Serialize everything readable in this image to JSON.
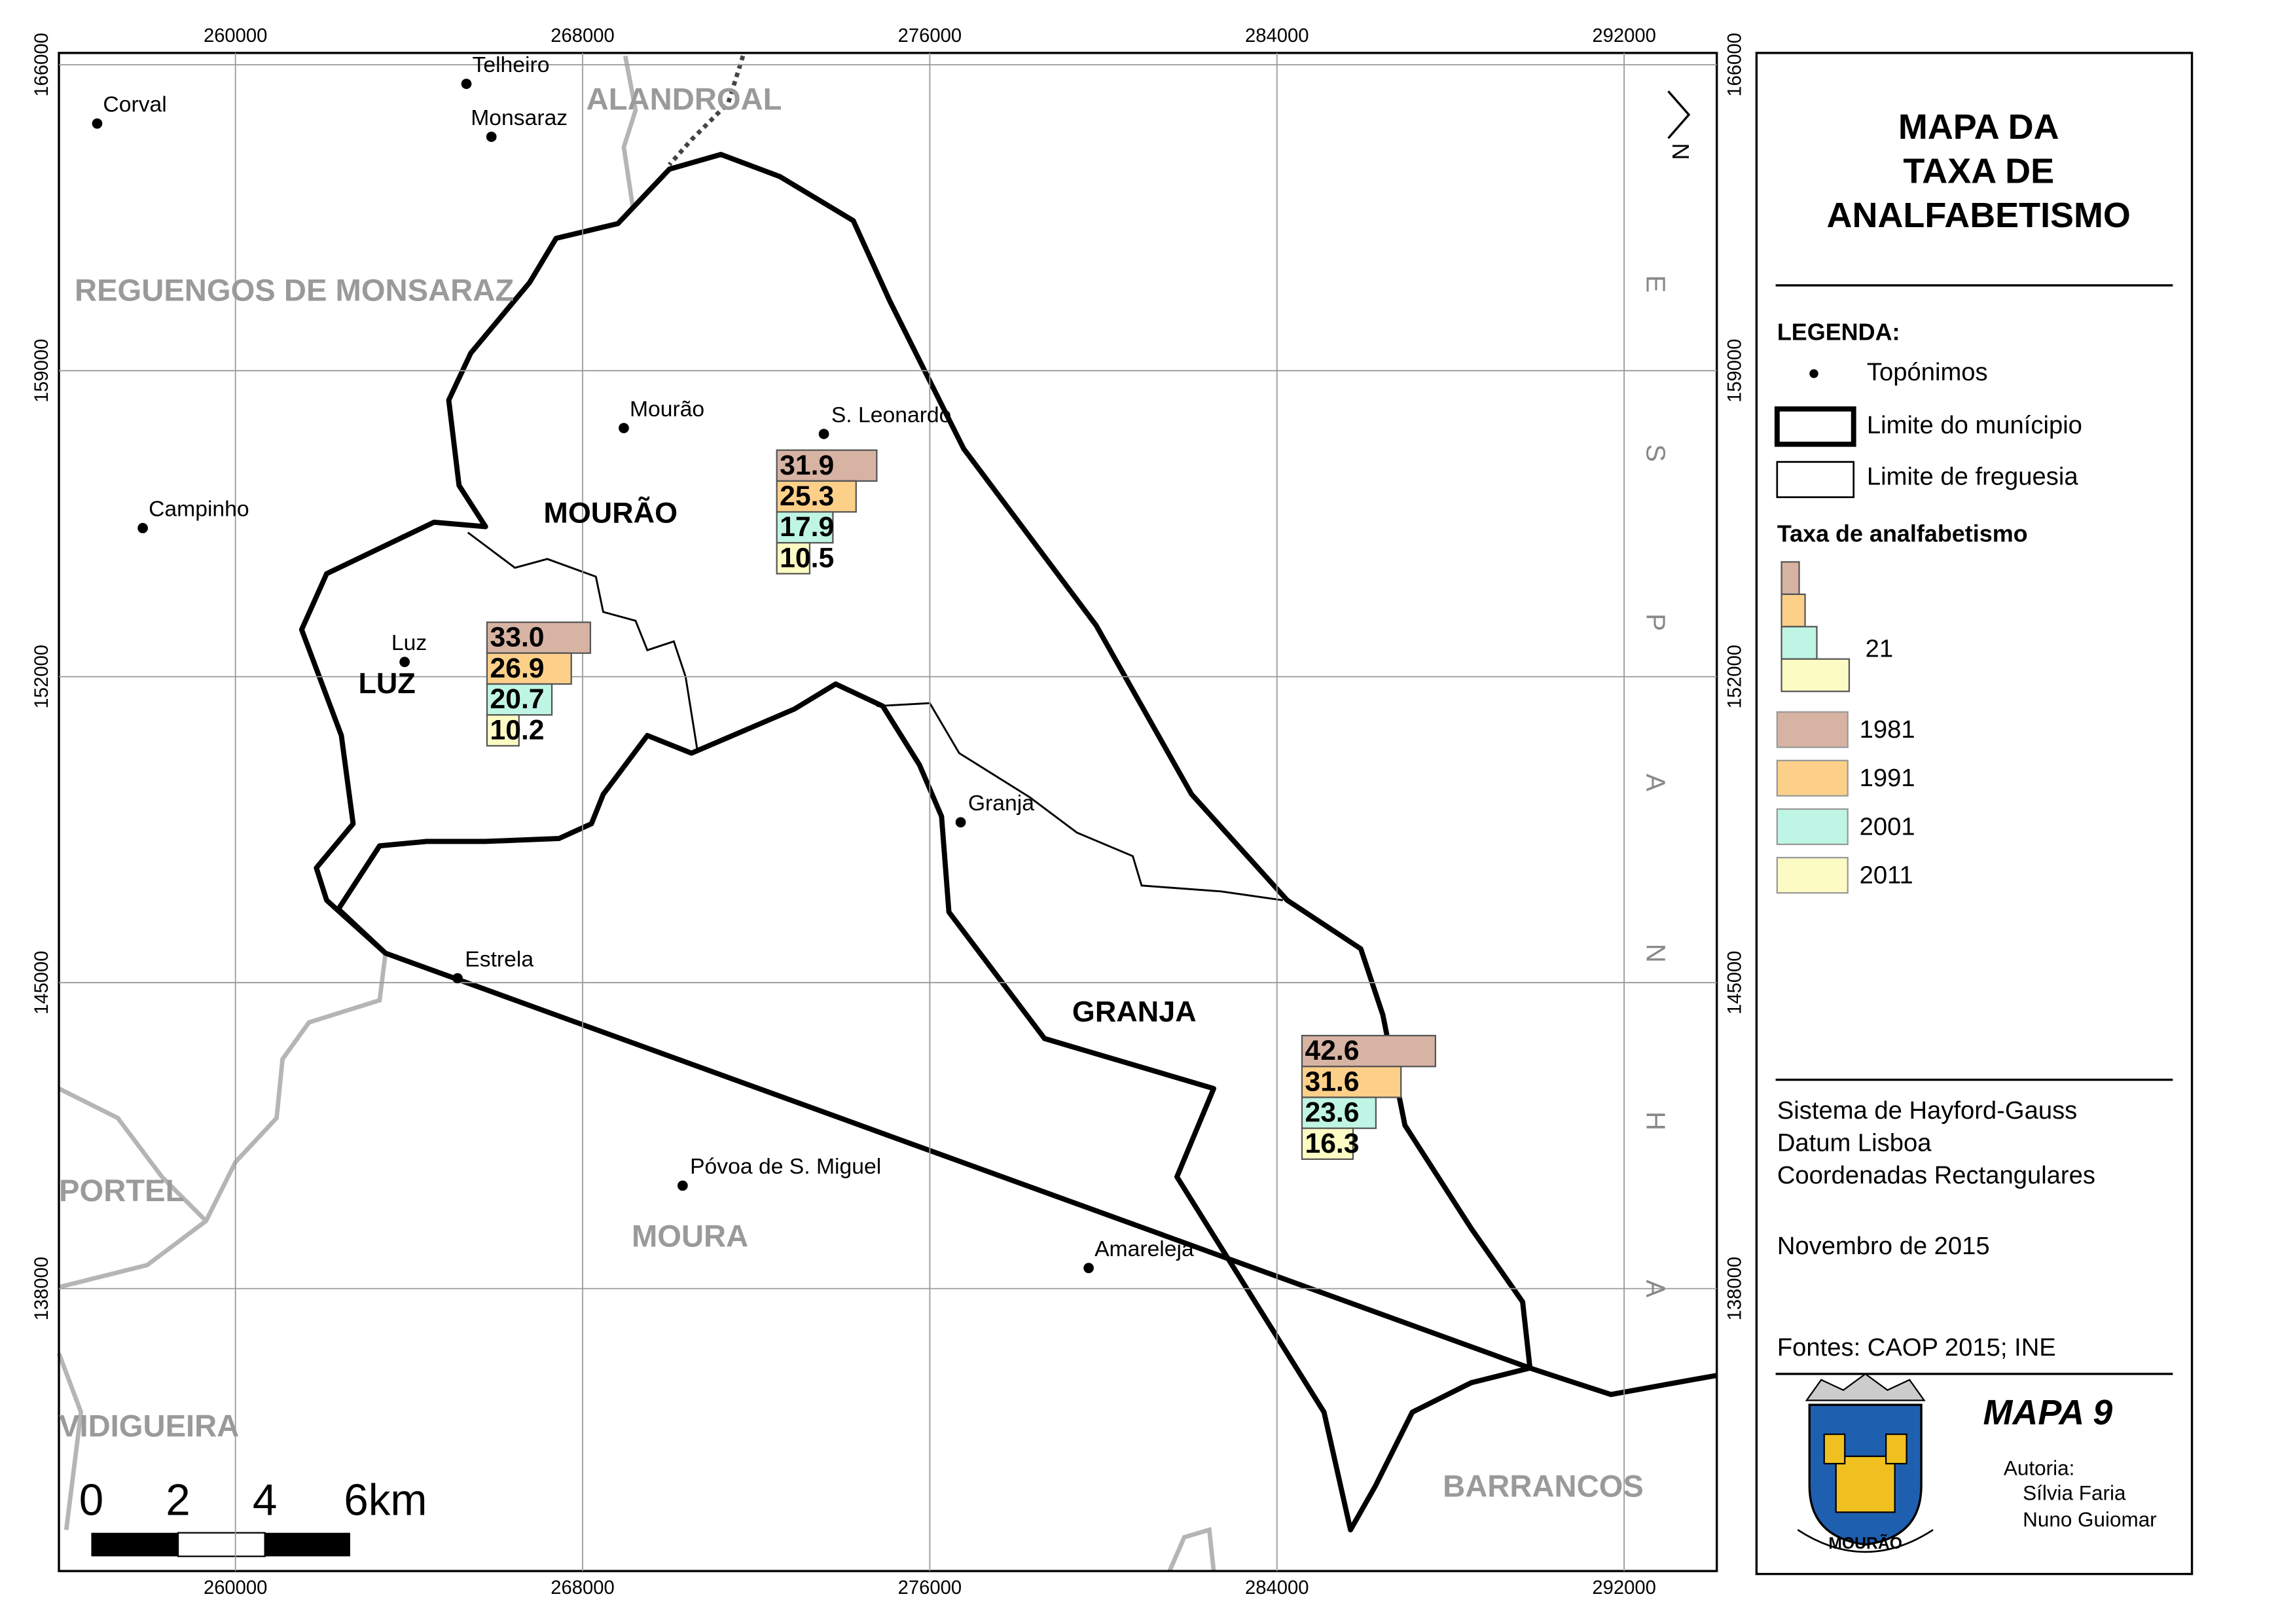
{
  "title": [
    "MAPA DA",
    "TAXA DE",
    "ANALFABETISMO"
  ],
  "legend": {
    "heading": "LEGENDA:",
    "items": [
      "Topónimos",
      "Limite do munícipio",
      "Limite de freguesia"
    ],
    "rate_heading": "Taxa de analfabetismo",
    "size_label": "21",
    "classes": [
      {
        "name": "1981",
        "color": "#d7b3a3"
      },
      {
        "name": "1991",
        "color": "#fdd08a"
      },
      {
        "name": "2001",
        "color": "#bff5e4"
      },
      {
        "name": "2011",
        "color": "#fdfbc4"
      }
    ]
  },
  "info": [
    "Sistema de Hayford-Gauss",
    "Datum Lisboa",
    "Coordenadas Rectangulares"
  ],
  "date": "Novembro de 2015",
  "sources": "Fontes: CAOP 2015; INE",
  "map_number": "MAPA 9",
  "author_heading": "Autoria:",
  "authors": [
    "Sílvia Faria",
    "Nuno Guiomar"
  ],
  "emblem_text": "MOURÃO",
  "grid": {
    "x": [
      260000,
      268000,
      276000,
      284000,
      292000
    ],
    "y": [
      166000,
      159000,
      152000,
      145000,
      138000
    ]
  },
  "scale_labels": [
    "0",
    "2",
    "4",
    "6km"
  ],
  "north": "N",
  "places": [
    "Corval",
    "Telheiro",
    "Monsaraz",
    "Mourão",
    "S. Leonardo",
    "Campinho",
    "Luz",
    "Granja",
    "Estrela",
    "Póvoa de S. Miguel",
    "Amareleja"
  ],
  "parishes": [
    "MOURÃO",
    "LUZ",
    "GRANJA"
  ],
  "municipalities": [
    "ALANDROAL",
    "REGUENGOS DE MONSARAZ",
    "PORTEL",
    "MOURA",
    "VIDIGUEIRA",
    "BARRANCOS"
  ],
  "country": [
    "E",
    "S",
    "P",
    "A",
    "N",
    "H",
    "A"
  ],
  "bar_groups": [
    {
      "values": [
        31.9,
        25.3,
        17.9,
        10.5
      ],
      "value_labels": [
        "31.9",
        "25.3",
        "17.9",
        "10.5"
      ]
    },
    {
      "values": [
        33.0,
        26.9,
        20.7,
        10.2
      ],
      "value_labels": [
        "33.0",
        "26.9",
        "20.7",
        "10.2"
      ]
    },
    {
      "values": [
        42.6,
        31.6,
        23.6,
        16.3
      ],
      "value_labels": [
        "42.6",
        "31.6",
        "23.6",
        "16.3"
      ]
    }
  ]
}
